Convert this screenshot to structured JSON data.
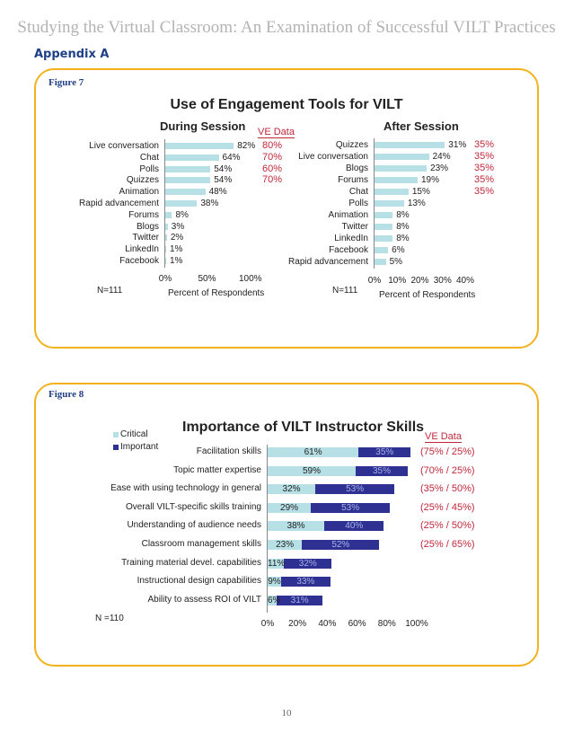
{
  "header": "Studying the Virtual Classroom: An Examination of Successful VILT Practices",
  "appendix": "Appendix A",
  "page_number": "10",
  "fig7": {
    "label": "Figure 7",
    "title": "Use of Engagement Tools for VILT",
    "ve_data_label": "VE Data",
    "n_left": "N=111",
    "n_right": "N=111",
    "during": {
      "title": "During Session",
      "items": [
        {
          "label": "Live conversation",
          "value": 82,
          "text": "82%",
          "ve": "80%"
        },
        {
          "label": "Chat",
          "value": 64,
          "text": "64%",
          "ve": "70%"
        },
        {
          "label": "Polls",
          "value": 54,
          "text": "54%",
          "ve": "60%"
        },
        {
          "label": "Quizzes",
          "value": 54,
          "text": "54%",
          "ve": "70%"
        },
        {
          "label": "Animation",
          "value": 48,
          "text": "48%",
          "ve": ""
        },
        {
          "label": "Rapid advancement",
          "value": 38,
          "text": "38%",
          "ve": ""
        },
        {
          "label": "Forums",
          "value": 8,
          "text": "8%",
          "ve": ""
        },
        {
          "label": "Blogs",
          "value": 3,
          "text": "3%",
          "ve": ""
        },
        {
          "label": "Twitter",
          "value": 2,
          "text": "2%",
          "ve": ""
        },
        {
          "label": "LinkedIn",
          "value": 1,
          "text": "1%",
          "ve": ""
        },
        {
          "label": "Facebook",
          "value": 1,
          "text": "1%",
          "ve": ""
        }
      ],
      "ticks": [
        "0%",
        "50%",
        "100%"
      ],
      "xlabel": "Percent of Respondents"
    },
    "after": {
      "title": "After Session",
      "items": [
        {
          "label": "Quizzes",
          "value": 31,
          "text": "31%",
          "ve": "35%"
        },
        {
          "label": "Live conversation",
          "value": 24,
          "text": "24%",
          "ve": "35%"
        },
        {
          "label": "Blogs",
          "value": 23,
          "text": "23%",
          "ve": "35%"
        },
        {
          "label": "Forums",
          "value": 19,
          "text": "19%",
          "ve": "35%"
        },
        {
          "label": "Chat",
          "value": 15,
          "text": "15%",
          "ve": "35%"
        },
        {
          "label": "Polls",
          "value": 13,
          "text": "13%",
          "ve": ""
        },
        {
          "label": "Animation",
          "value": 8,
          "text": "8%",
          "ve": ""
        },
        {
          "label": "Twitter",
          "value": 8,
          "text": "8%",
          "ve": ""
        },
        {
          "label": "LinkedIn",
          "value": 8,
          "text": "8%",
          "ve": ""
        },
        {
          "label": "Facebook",
          "value": 6,
          "text": "6%",
          "ve": ""
        },
        {
          "label": "Rapid advancement",
          "value": 5,
          "text": "5%",
          "ve": ""
        }
      ],
      "ticks": [
        "0%",
        "10%",
        "20%",
        "30%",
        "40%"
      ],
      "xlabel": "Percent of Respondents"
    }
  },
  "fig8": {
    "label": "Figure 8",
    "title": "Importance of VILT Instructor Skills",
    "ve_data_label": "VE Data",
    "legend": [
      "Critical",
      "Important"
    ],
    "n_label": "N =110",
    "ticks": [
      "0%",
      "20%",
      "40%",
      "60%",
      "80%",
      "100%"
    ],
    "colors": {
      "critical": "#b7e0e6",
      "important": "#2e3192"
    },
    "items": [
      {
        "label": "Facilitation skills",
        "critical": 61,
        "important": 35,
        "ct": "61%",
        "it": "35%",
        "ve": "(75% / 25%)"
      },
      {
        "label": "Topic matter expertise",
        "critical": 59,
        "important": 35,
        "ct": "59%",
        "it": "35%",
        "ve": "(70% / 25%)"
      },
      {
        "label": "Ease with using technology in general",
        "critical": 32,
        "important": 53,
        "ct": "32%",
        "it": "53%",
        "ve": "(35% / 50%)"
      },
      {
        "label": "Overall VILT-specific skills training",
        "critical": 29,
        "important": 53,
        "ct": "29%",
        "it": "53%",
        "ve": "(25% / 45%)"
      },
      {
        "label": "Understanding of audience needs",
        "critical": 38,
        "important": 40,
        "ct": "38%",
        "it": "40%",
        "ve": "(25% / 50%)"
      },
      {
        "label": "Classroom management skills",
        "critical": 23,
        "important": 52,
        "ct": "23%",
        "it": "52%",
        "ve": "(25% / 65%)"
      },
      {
        "label": "Training material devel. capabilities",
        "critical": 11,
        "important": 32,
        "ct": "11%",
        "it": "32%",
        "ve": ""
      },
      {
        "label": "Instructional design capabilities",
        "critical": 9,
        "important": 33,
        "ct": "9%",
        "it": "33%",
        "ve": ""
      },
      {
        "label": "Ability to assess ROI of VILT",
        "critical": 6,
        "important": 31,
        "ct": "6%",
        "it": "31%",
        "ve": ""
      }
    ]
  },
  "chart_data": [
    {
      "type": "bar",
      "title": "During Session",
      "categories": [
        "Live conversation",
        "Chat",
        "Polls",
        "Quizzes",
        "Animation",
        "Rapid advancement",
        "Forums",
        "Blogs",
        "Twitter",
        "LinkedIn",
        "Facebook"
      ],
      "series": [
        {
          "name": "",
          "values": [
            82,
            64,
            54,
            54,
            48,
            38,
            8,
            3,
            2,
            1,
            1
          ]
        }
      ],
      "xlabel": "Percent of Respondents",
      "xlim": [
        0,
        100
      ]
    },
    {
      "type": "bar",
      "title": "After Session",
      "categories": [
        "Quizzes",
        "Live conversation",
        "Blogs",
        "Forums",
        "Chat",
        "Polls",
        "Animation",
        "Twitter",
        "LinkedIn",
        "Facebook",
        "Rapid advancement"
      ],
      "series": [
        {
          "name": "",
          "values": [
            31,
            24,
            23,
            19,
            15,
            13,
            8,
            8,
            8,
            6,
            5
          ]
        }
      ],
      "xlabel": "Percent of Respondents",
      "xlim": [
        0,
        40
      ]
    },
    {
      "type": "bar",
      "title": "Importance of VILT Instructor Skills",
      "categories": [
        "Facilitation skills",
        "Topic matter expertise",
        "Ease with using technology in general",
        "Overall VILT-specific skills training",
        "Understanding of audience needs",
        "Classroom management skills",
        "Training material devel. capabilities",
        "Instructional design capabilities",
        "Ability to assess ROI of VILT"
      ],
      "series": [
        {
          "name": "Critical",
          "values": [
            61,
            59,
            32,
            29,
            38,
            23,
            11,
            9,
            6
          ]
        },
        {
          "name": "Important",
          "values": [
            35,
            35,
            53,
            53,
            40,
            52,
            32,
            33,
            31
          ]
        }
      ],
      "stacked": true,
      "xlim": [
        0,
        100
      ]
    }
  ]
}
